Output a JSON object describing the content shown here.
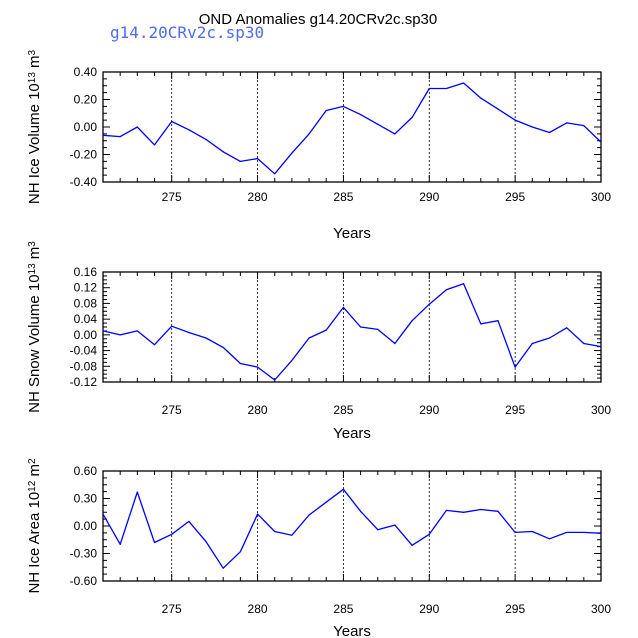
{
  "figure": {
    "title": "OND Anomalies g14.20CRv2c.sp30",
    "subtitle": "g14.20CRv2c.sp30",
    "title_color": "#000000",
    "subtitle_color": "#4a6cf0",
    "line_color": "#0000ff"
  },
  "chart_data": [
    {
      "type": "line",
      "title": "NH Ice Volume",
      "ylabel": "NH Ice Volume 10",
      "ylabel_exp": "13",
      "ylabel_unit": "m",
      "ylabel_unit_exp": "3",
      "xlabel": "Years",
      "xlim": [
        271,
        300
      ],
      "ylim": [
        -0.4,
        0.4
      ],
      "xticks": [
        275,
        280,
        285,
        290,
        295,
        300
      ],
      "xtick_labels": [
        "275",
        "280",
        "285",
        "290",
        "295",
        "300"
      ],
      "yticks": [
        -0.4,
        -0.2,
        0.0,
        0.2,
        0.4
      ],
      "ytick_labels": [
        "-0.40",
        "-0.20",
        "0.00",
        "0.20",
        "0.40"
      ],
      "x": [
        271,
        272,
        273,
        274,
        275,
        276,
        277,
        278,
        279,
        280,
        281,
        282,
        283,
        284,
        285,
        286,
        287,
        288,
        289,
        290,
        291,
        292,
        293,
        294,
        295,
        296,
        297,
        298,
        299,
        300
      ],
      "series": [
        {
          "name": "g14.20CRv2c.sp30",
          "values": [
            -0.06,
            -0.07,
            0.0,
            -0.13,
            0.04,
            -0.02,
            -0.09,
            -0.18,
            -0.25,
            -0.23,
            -0.34,
            -0.19,
            -0.05,
            0.12,
            0.15,
            0.09,
            0.02,
            -0.05,
            0.07,
            0.28,
            0.28,
            0.32,
            0.21,
            0.13,
            0.05,
            0.0,
            -0.04,
            0.03,
            0.01,
            -0.11
          ]
        }
      ]
    },
    {
      "type": "line",
      "title": "NH Snow Volume",
      "ylabel": "NH Snow Volume 10",
      "ylabel_exp": "13",
      "ylabel_unit": "m",
      "ylabel_unit_exp": "3",
      "xlabel": "Years",
      "xlim": [
        271,
        300
      ],
      "ylim": [
        -0.12,
        0.16
      ],
      "xticks": [
        275,
        280,
        285,
        290,
        295,
        300
      ],
      "xtick_labels": [
        "275",
        "280",
        "285",
        "290",
        "295",
        "300"
      ],
      "yticks": [
        -0.12,
        -0.08,
        -0.04,
        0.0,
        0.04,
        0.08,
        0.12,
        0.16
      ],
      "ytick_labels": [
        "-0.12",
        "-0.08",
        "-0.04",
        "0.00",
        "0.04",
        "0.08",
        "0.12",
        "0.16"
      ],
      "x": [
        271,
        272,
        273,
        274,
        275,
        276,
        277,
        278,
        279,
        280,
        281,
        282,
        283,
        284,
        285,
        286,
        287,
        288,
        289,
        290,
        291,
        292,
        293,
        294,
        295,
        296,
        297,
        298,
        299,
        300
      ],
      "series": [
        {
          "name": "g14.20CRv2c.sp30",
          "values": [
            0.01,
            0.0,
            0.01,
            -0.025,
            0.022,
            0.006,
            -0.008,
            -0.032,
            -0.073,
            -0.082,
            -0.115,
            -0.065,
            -0.008,
            0.012,
            0.07,
            0.02,
            0.014,
            -0.022,
            0.036,
            0.078,
            0.115,
            0.13,
            0.028,
            0.036,
            -0.082,
            -0.022,
            -0.008,
            0.018,
            -0.022,
            -0.03
          ]
        }
      ]
    },
    {
      "type": "line",
      "title": "NH Ice Area",
      "ylabel": "NH Ice Area 10",
      "ylabel_exp": "12",
      "ylabel_unit": "m",
      "ylabel_unit_exp": "2",
      "xlabel": "Years",
      "xlim": [
        271,
        300
      ],
      "ylim": [
        -0.6,
        0.6
      ],
      "xticks": [
        275,
        280,
        285,
        290,
        295,
        300
      ],
      "xtick_labels": [
        "275",
        "280",
        "285",
        "290",
        "295",
        "300"
      ],
      "yticks": [
        -0.6,
        -0.3,
        0.0,
        0.3,
        0.6
      ],
      "ytick_labels": [
        "-0.60",
        "-0.30",
        "0.00",
        "0.30",
        "0.60"
      ],
      "x": [
        271,
        272,
        273,
        274,
        275,
        276,
        277,
        278,
        279,
        280,
        281,
        282,
        283,
        284,
        285,
        286,
        287,
        288,
        289,
        290,
        291,
        292,
        293,
        294,
        295,
        296,
        297,
        298,
        299,
        300
      ],
      "series": [
        {
          "name": "g14.20CRv2c.sp30",
          "values": [
            0.13,
            -0.2,
            0.37,
            -0.18,
            -0.09,
            0.05,
            -0.17,
            -0.46,
            -0.28,
            0.13,
            -0.06,
            -0.1,
            0.12,
            0.26,
            0.4,
            0.16,
            -0.04,
            0.01,
            -0.21,
            -0.09,
            0.17,
            0.15,
            0.18,
            0.16,
            -0.07,
            -0.06,
            -0.14,
            -0.07,
            -0.07,
            -0.08
          ]
        }
      ]
    }
  ]
}
